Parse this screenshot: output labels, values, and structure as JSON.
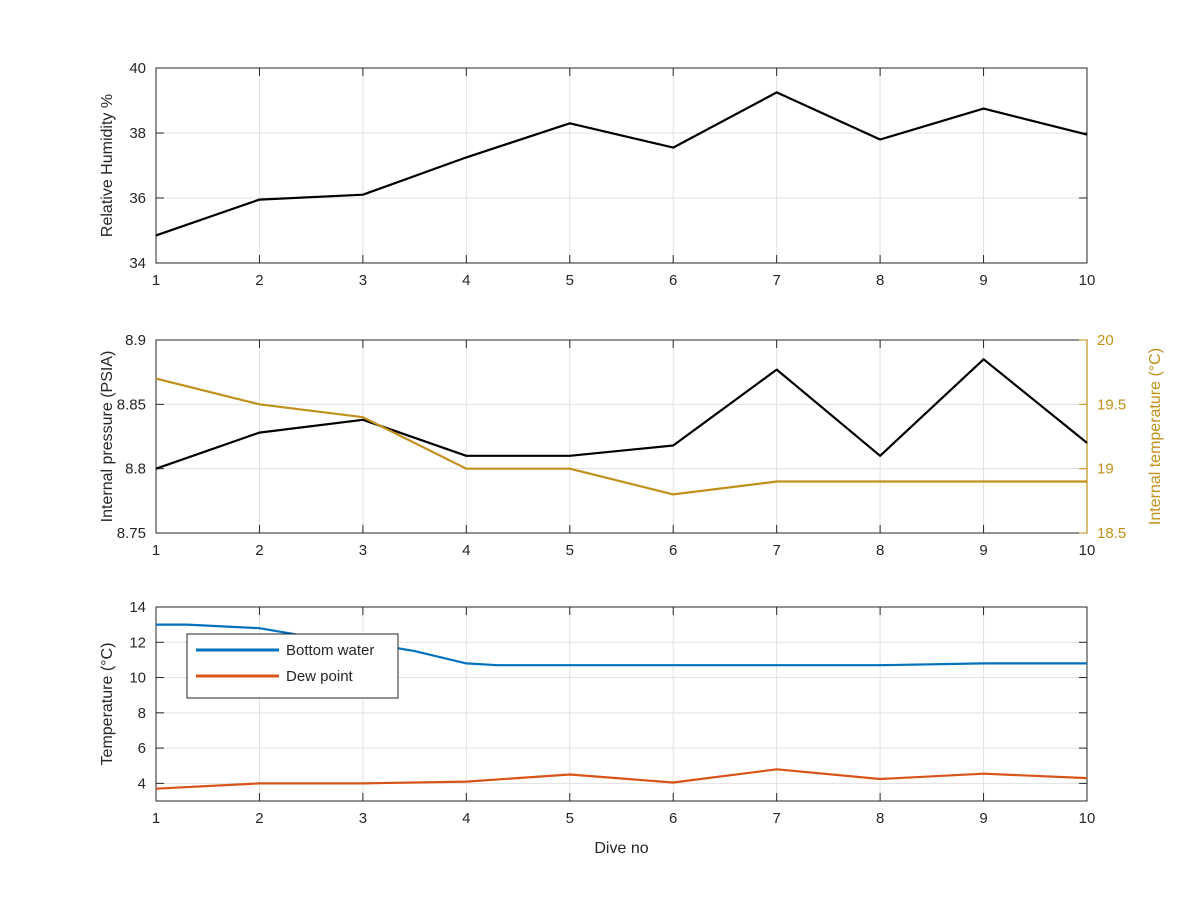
{
  "chart_data": [
    {
      "type": "line",
      "xlabel": "",
      "ylabel": "Relative Humidity %",
      "xlim": [
        1,
        10
      ],
      "ylim": [
        34,
        40
      ],
      "x_ticks": [
        "1",
        "2",
        "3",
        "4",
        "5",
        "6",
        "7",
        "8",
        "9",
        "10"
      ],
      "y_ticks": [
        "34",
        "36",
        "38",
        "40"
      ],
      "grid": true,
      "series": [
        {
          "color": "#000000",
          "x": [
            1,
            2,
            3,
            4,
            5,
            6,
            7,
            8,
            9,
            10
          ],
          "y": [
            34.85,
            35.95,
            36.1,
            37.25,
            38.3,
            37.55,
            39.25,
            37.8,
            38.75,
            37.95
          ]
        }
      ]
    },
    {
      "type": "line",
      "xlabel": "",
      "ylabel": "Internal pressure (PSIA)",
      "ylabel_right": "Internal temperature (°C)",
      "xlim": [
        1,
        10
      ],
      "ylim": [
        8.75,
        8.9
      ],
      "ylim_right": [
        18.5,
        20
      ],
      "x_ticks": [
        "1",
        "2",
        "3",
        "4",
        "5",
        "6",
        "7",
        "8",
        "9",
        "10"
      ],
      "y_ticks": [
        "8.75",
        "8.8",
        "8.85",
        "8.9"
      ],
      "y_ticks_right": [
        "18.5",
        "19",
        "19.5",
        "20"
      ],
      "grid": true,
      "series": [
        {
          "axis": "left",
          "color": "#000000",
          "x": [
            1,
            2,
            3,
            4,
            5,
            6,
            7,
            8,
            9,
            10
          ],
          "y": [
            8.8,
            8.828,
            8.838,
            8.81,
            8.81,
            8.818,
            8.877,
            8.81,
            8.885,
            8.82
          ]
        },
        {
          "axis": "right",
          "color": "#C0901A",
          "x": [
            1,
            2,
            3,
            4,
            5,
            6,
            7,
            8,
            9,
            10
          ],
          "y": [
            19.7,
            19.5,
            19.4,
            19.0,
            19.0,
            18.8,
            18.9,
            18.9,
            18.9,
            18.9
          ]
        }
      ]
    },
    {
      "type": "line",
      "xlabel": "Dive no",
      "ylabel": "Temperature (°C)",
      "xlim": [
        1,
        10
      ],
      "ylim": [
        3,
        14
      ],
      "x_ticks": [
        "1",
        "2",
        "3",
        "4",
        "5",
        "6",
        "7",
        "8",
        "9",
        "10"
      ],
      "y_ticks": [
        "4",
        "6",
        "8",
        "10",
        "12",
        "14"
      ],
      "grid": true,
      "legend_position": "top-left",
      "series": [
        {
          "name": "Bottom water",
          "color": "#0072BD",
          "x": [
            1,
            1.3,
            2,
            2.5,
            3,
            3.5,
            4,
            4.3,
            5,
            6,
            7,
            8,
            9,
            10
          ],
          "y": [
            13.0,
            13.0,
            12.8,
            12.3,
            12.0,
            11.5,
            10.8,
            10.7,
            10.7,
            10.7,
            10.7,
            10.7,
            10.8,
            10.8
          ]
        },
        {
          "name": "Dew point",
          "color": "#D95319",
          "x": [
            1,
            2,
            3,
            4,
            5,
            6,
            7,
            8,
            9,
            10
          ],
          "y": [
            3.7,
            4.0,
            4.0,
            4.1,
            4.5,
            4.05,
            4.8,
            4.25,
            4.55,
            4.3
          ]
        }
      ]
    }
  ]
}
